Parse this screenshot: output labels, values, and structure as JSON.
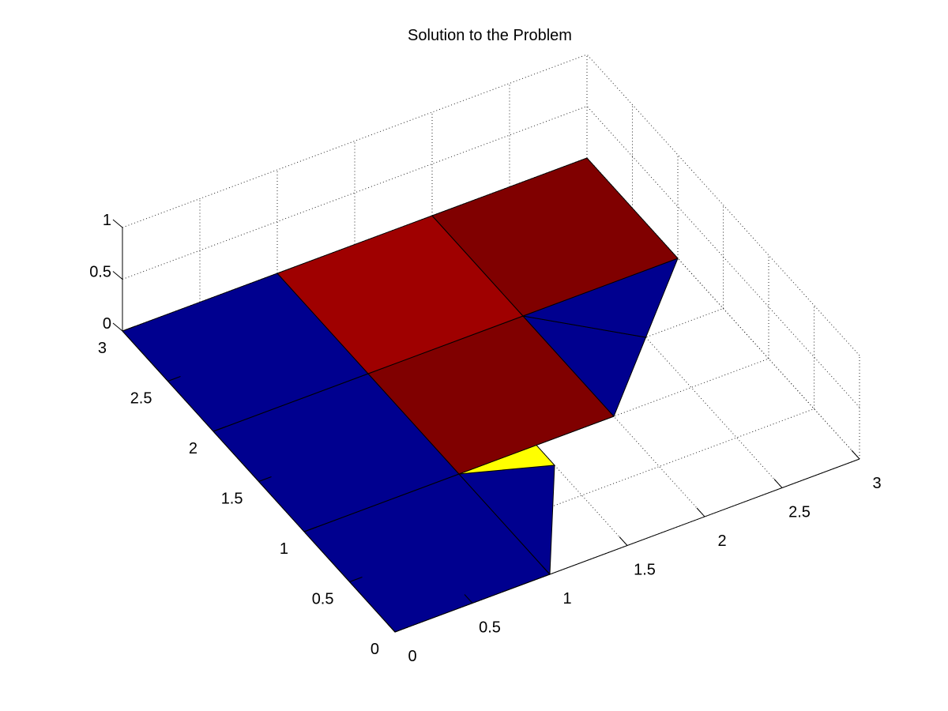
{
  "chart_data": {
    "type": "surface3d",
    "title": "Solution to the Problem",
    "xlabel": "",
    "ylabel": "",
    "zlabel": "",
    "x_ticks": [
      "0",
      "0.5",
      "1",
      "1.5",
      "2",
      "2.5",
      "3"
    ],
    "y_ticks": [
      "0",
      "0.5",
      "1",
      "1.5",
      "2",
      "2.5",
      "3"
    ],
    "z_ticks": [
      "0",
      "0.5",
      "1"
    ],
    "xlim": [
      0,
      3
    ],
    "ylim": [
      0,
      3
    ],
    "zlim": [
      0,
      1
    ],
    "grid": true,
    "colors": {
      "low": "#00008f",
      "high_dark": "#800000",
      "high_mid": "#9f0000",
      "mid": "#ffff00"
    },
    "faces": [
      {
        "color": "low",
        "points": [
          [
            0,
            0,
            0
          ],
          [
            0,
            1,
            0
          ],
          [
            1,
            1,
            0
          ],
          [
            1,
            0,
            0
          ]
        ]
      },
      {
        "color": "low",
        "points": [
          [
            0,
            1,
            0
          ],
          [
            0,
            2,
            0
          ],
          [
            1,
            2,
            0
          ],
          [
            1,
            1,
            0
          ]
        ]
      },
      {
        "color": "low",
        "points": [
          [
            0,
            2,
            0
          ],
          [
            0,
            3,
            0
          ],
          [
            1,
            3,
            0
          ],
          [
            1,
            2,
            0
          ]
        ]
      },
      {
        "color": "low",
        "points": [
          [
            1,
            0,
            0
          ],
          [
            1,
            1,
            0
          ],
          [
            1.5,
            0.8,
            0
          ]
        ]
      },
      {
        "color": "mid",
        "points": [
          [
            1,
            1,
            0
          ],
          [
            1.5,
            0.8,
            0
          ],
          [
            1.5,
            1.5,
            0
          ]
        ]
      },
      {
        "color": "low",
        "points": [
          [
            1,
            1,
            0
          ],
          [
            1.5,
            1.5,
            0
          ],
          [
            2,
            1,
            0
          ]
        ]
      },
      {
        "color": "high_dark",
        "points": [
          [
            1,
            1,
            0
          ],
          [
            1,
            2,
            0
          ],
          [
            2,
            2,
            0
          ],
          [
            2,
            1,
            0
          ]
        ]
      },
      {
        "color": "high_mid",
        "points": [
          [
            1,
            2,
            0
          ],
          [
            1,
            3,
            0
          ],
          [
            2,
            3,
            0
          ],
          [
            2,
            2,
            0
          ]
        ]
      },
      {
        "color": "low",
        "points": [
          [
            2,
            1,
            0
          ],
          [
            2,
            2,
            0
          ],
          [
            2.5,
            1.5,
            0
          ]
        ]
      },
      {
        "color": "low",
        "points": [
          [
            2,
            2,
            0
          ],
          [
            2.5,
            1.5,
            0
          ],
          [
            3,
            2,
            0
          ]
        ]
      },
      {
        "color": "high_dark",
        "points": [
          [
            2,
            2,
            0
          ],
          [
            2,
            3,
            0
          ],
          [
            3,
            3,
            0
          ],
          [
            3,
            2,
            0
          ]
        ]
      }
    ]
  }
}
